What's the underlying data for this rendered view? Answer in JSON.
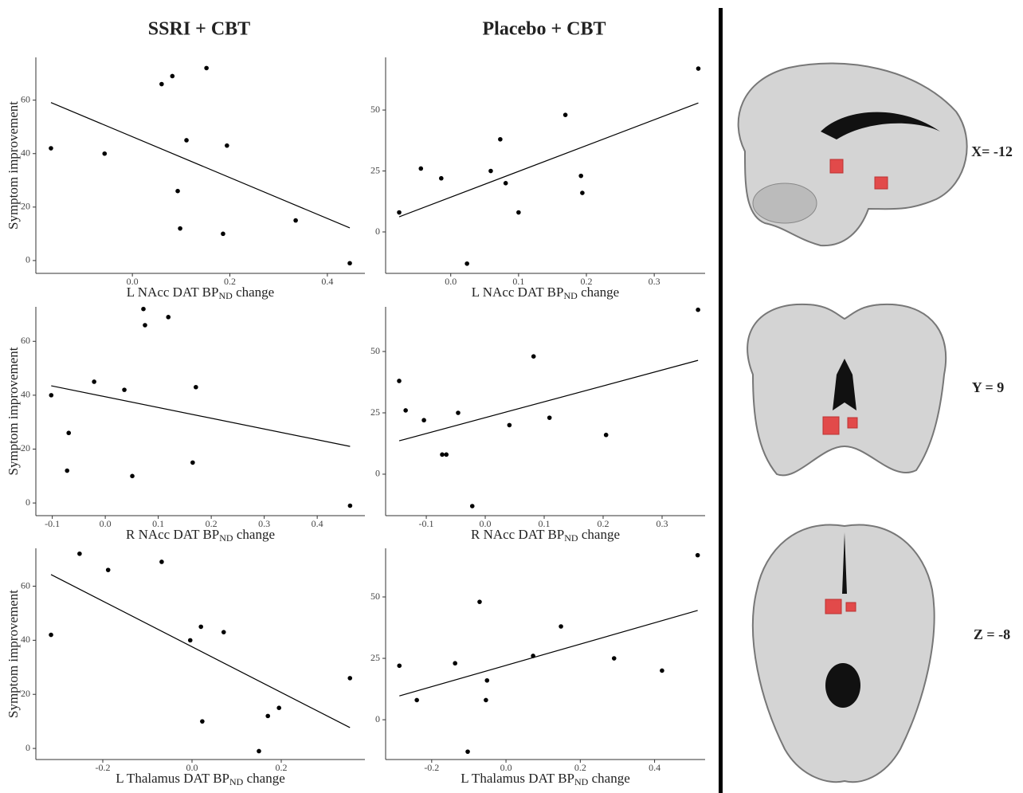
{
  "columns": [
    "SSRI + CBT",
    "Placebo + CBT"
  ],
  "brain_slices": [
    "X= -12",
    "Y = 9",
    "Z = -8"
  ],
  "chart_data": [
    {
      "type": "scatter",
      "xlabel": [
        "L NAcc DAT BP",
        "ND",
        " change"
      ],
      "ylabel": "Symptom improvement",
      "color": "#000000",
      "x": [
        -0.167,
        -0.057,
        0.06,
        0.082,
        0.152,
        0.111,
        0.093,
        0.098,
        0.194,
        0.186,
        0.335,
        0.446
      ],
      "values": [
        42,
        40,
        66,
        69,
        72,
        45,
        26,
        12,
        43,
        10,
        15,
        -1
      ],
      "fit": {
        "x": [
          -0.167,
          0.446
        ],
        "y": [
          59.1,
          12.2
        ]
      },
      "xlim": [
        -0.198,
        0.477
      ],
      "ylim": [
        -4.8,
        76
      ],
      "xticks": [
        {
          "value": 0,
          "label": "0.0"
        },
        0.2,
        0.4
      ],
      "yticks": [
        0,
        20,
        40,
        60
      ]
    },
    {
      "type": "scatter",
      "xlabel": [
        "L NAcc DAT BP",
        "ND",
        " change"
      ],
      "color": "#000000",
      "x": [
        -0.076,
        -0.044,
        -0.014,
        0.024,
        0.059,
        0.073,
        0.081,
        0.1,
        0.169,
        0.192,
        0.194,
        0.365
      ],
      "values": [
        8,
        26,
        22,
        -13,
        25,
        38,
        20,
        8,
        48,
        23,
        16,
        67
      ],
      "fit": {
        "x": [
          -0.076,
          0.365
        ],
        "y": [
          6.2,
          52.9
        ]
      },
      "xlim": [
        -0.096,
        0.375
      ],
      "ylim": [
        -17,
        71.6
      ],
      "xticks": [
        {
          "value": 0,
          "label": "0.0"
        },
        0.1,
        0.2,
        0.3
      ],
      "yticks": [
        0,
        25,
        50
      ]
    },
    {
      "type": "scatter",
      "xlabel": [
        "R NAcc DAT BP",
        "ND",
        " change"
      ],
      "ylabel": "Symptom improvement",
      "color": "#000000",
      "x": [
        -0.102,
        -0.069,
        -0.072,
        -0.021,
        0.036,
        0.072,
        0.075,
        0.119,
        0.051,
        0.165,
        0.171,
        0.462
      ],
      "values": [
        40,
        26,
        12,
        45,
        42,
        72,
        66,
        69,
        10,
        15,
        43,
        -1
      ],
      "fit": {
        "x": [
          -0.102,
          0.462
        ],
        "y": [
          43.5,
          21
        ]
      },
      "xlim": [
        -0.131,
        0.49
      ],
      "ylim": [
        -4.7,
        72.8
      ],
      "xticks": [
        -0.1,
        {
          "value": 0,
          "label": "0.0"
        },
        0.1,
        0.2,
        0.3,
        0.4
      ],
      "yticks": [
        0,
        20,
        40,
        60
      ]
    },
    {
      "type": "scatter",
      "xlabel": [
        "R NAcc DAT BP",
        "ND",
        " change"
      ],
      "color": "#000000",
      "x": [
        -0.146,
        -0.135,
        -0.104,
        -0.073,
        -0.066,
        -0.046,
        -0.022,
        0.041,
        0.082,
        0.109,
        0.205,
        0.361
      ],
      "values": [
        38,
        26,
        22,
        8,
        8,
        25,
        -13,
        20,
        48,
        23,
        16,
        67
      ],
      "fit": {
        "x": [
          -0.146,
          0.361
        ],
        "y": [
          13.6,
          46.4
        ]
      },
      "xlim": [
        -0.169,
        0.373
      ],
      "ylim": [
        -16.9,
        68.2
      ],
      "xticks": [
        -0.1,
        {
          "value": 0,
          "label": "0.0"
        },
        0.1,
        0.2,
        0.3
      ],
      "yticks": [
        0,
        25,
        50
      ]
    },
    {
      "type": "scatter",
      "xlabel": [
        "L Thalamus DAT BP",
        "ND",
        " change"
      ],
      "ylabel": "Symptom improvement",
      "color": "#000000",
      "x": [
        -0.316,
        -0.252,
        -0.188,
        -0.068,
        -0.004,
        0.02,
        0.071,
        0.023,
        0.15,
        0.17,
        0.195,
        0.354
      ],
      "values": [
        42,
        72,
        66,
        69,
        40,
        45,
        43,
        10,
        -1,
        12,
        15,
        26
      ],
      "fit": {
        "x": [
          -0.316,
          0.354
        ],
        "y": [
          64.3,
          7.7
        ]
      },
      "xlim": [
        -0.35,
        0.3875
      ],
      "ylim": [
        -4.1,
        74
      ],
      "xticks": [
        -0.2,
        {
          "value": 0,
          "label": "0.0"
        },
        0.2
      ],
      "yticks": [
        0,
        20,
        40,
        60
      ]
    },
    {
      "type": "scatter",
      "xlabel": [
        "L Thalamus DAT BP",
        "ND",
        " change"
      ],
      "color": "#000000",
      "x": [
        -0.287,
        -0.24,
        -0.137,
        -0.103,
        -0.071,
        -0.051,
        -0.054,
        0.073,
        0.148,
        0.291,
        0.42,
        0.516
      ],
      "values": [
        22,
        8,
        23,
        -13,
        48,
        16,
        8,
        26,
        38,
        25,
        20,
        67
      ],
      "fit": {
        "x": [
          -0.287,
          0.516
        ],
        "y": [
          9.7,
          44.5
        ]
      },
      "xlim": [
        -0.324,
        0.536
      ],
      "ylim": [
        -16.2,
        69.8
      ],
      "xticks": [
        -0.2,
        {
          "value": 0,
          "label": "0.0"
        },
        0.2,
        0.4
      ],
      "yticks": [
        0,
        25,
        50
      ]
    }
  ]
}
